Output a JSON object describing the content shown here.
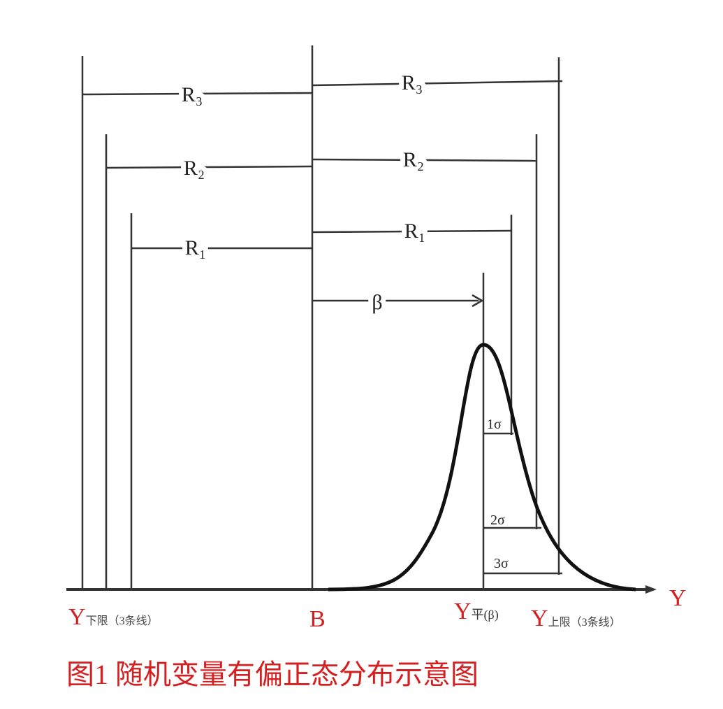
{
  "left_brackets": [
    "R₃",
    "R₂",
    "R₁"
  ],
  "right_brackets": [
    "R₃",
    "R₂",
    "R₁"
  ],
  "beta": "β",
  "sigma_labels": [
    "1σ",
    "2σ",
    "3σ"
  ],
  "axis_labels": {
    "lower": {
      "symbol": "Y",
      "sub": "下限",
      "note": "（3条线）"
    },
    "b": "B",
    "mean": {
      "symbol": "Y",
      "sub": "平(β)"
    },
    "upper": {
      "symbol": "Y",
      "sub": "上限",
      "note": "（3条线）"
    },
    "axis": "Y"
  },
  "caption": "图1  随机变量有偏正态分布示意图"
}
